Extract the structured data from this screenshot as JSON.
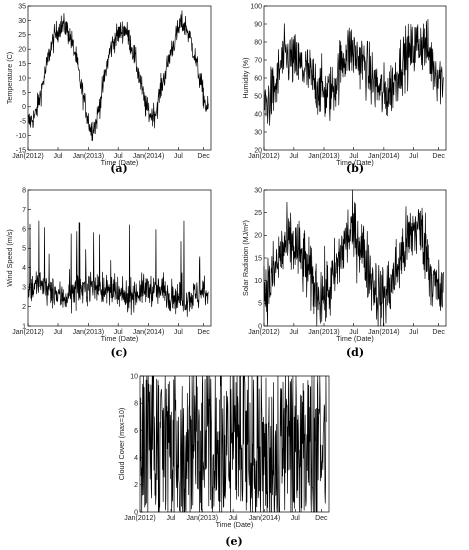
{
  "chart_data": [
    {
      "type": "line",
      "panel": "(a)",
      "xlabel": "Time (Date)",
      "ylabel": "Temperature (C)",
      "ylim": [
        -15,
        35
      ],
      "yticks": [
        -15,
        -10,
        -5,
        0,
        5,
        10,
        15,
        20,
        25,
        30,
        35
      ],
      "xlim": [
        "2012-01-01",
        "2015-01-15"
      ],
      "xticks": [
        "Jan(2012)",
        "Jul",
        "Jan(2013)",
        "Jul",
        "Jan(2014)",
        "Jul",
        "Dec"
      ],
      "x": [
        "2012-01",
        "2012-02",
        "2012-03",
        "2012-04",
        "2012-05",
        "2012-06",
        "2012-07",
        "2012-08",
        "2012-09",
        "2012-10",
        "2012-11",
        "2012-12",
        "2013-01",
        "2013-02",
        "2013-03",
        "2013-04",
        "2013-05",
        "2013-06",
        "2013-07",
        "2013-08",
        "2013-09",
        "2013-10",
        "2013-11",
        "2013-12",
        "2014-01",
        "2014-02",
        "2014-03",
        "2014-04",
        "2014-05",
        "2014-06",
        "2014-07",
        "2014-08",
        "2014-09",
        "2014-10",
        "2014-11",
        "2014-12",
        "2015-01"
      ],
      "series": [
        {
          "values": [
            -5,
            -3,
            4,
            12,
            20,
            25,
            28,
            28,
            24,
            18,
            8,
            0,
            -8,
            -6,
            2,
            12,
            20,
            24,
            26,
            27,
            22,
            16,
            8,
            0,
            -3,
            -2,
            6,
            12,
            19,
            24,
            29,
            28,
            23,
            16,
            8,
            0,
            -2
          ]
        }
      ]
    },
    {
      "type": "line",
      "panel": "(b)",
      "xlabel": "Time (Date)",
      "ylabel": "Humidity (%)",
      "ylim": [
        20,
        100
      ],
      "yticks": [
        20,
        30,
        40,
        50,
        60,
        70,
        80,
        90,
        100
      ],
      "xlim": [
        "2012-01-01",
        "2015-01-15"
      ],
      "xticks": [
        "Jan(2012)",
        "Jul",
        "Jan(2013)",
        "Jul",
        "Jan(2014)",
        "Jul",
        "Dec"
      ],
      "x": [
        "2012-01",
        "2012-02",
        "2012-03",
        "2012-04",
        "2012-05",
        "2012-06",
        "2012-07",
        "2012-08",
        "2012-09",
        "2012-10",
        "2012-11",
        "2012-12",
        "2013-01",
        "2013-02",
        "2013-03",
        "2013-04",
        "2013-05",
        "2013-06",
        "2013-07",
        "2013-08",
        "2013-09",
        "2013-10",
        "2013-11",
        "2013-12",
        "2014-01",
        "2014-02",
        "2014-03",
        "2014-04",
        "2014-05",
        "2014-06",
        "2014-07",
        "2014-08",
        "2014-09",
        "2014-10",
        "2014-11",
        "2014-12",
        "2015-01"
      ],
      "series": [
        {
          "values": [
            45,
            50,
            55,
            68,
            72,
            70,
            68,
            66,
            64,
            60,
            56,
            54,
            50,
            52,
            58,
            68,
            74,
            76,
            72,
            70,
            66,
            60,
            56,
            52,
            50,
            55,
            60,
            68,
            72,
            74,
            78,
            80,
            78,
            70,
            64,
            60,
            58
          ]
        }
      ]
    },
    {
      "type": "line",
      "panel": "(c)",
      "xlabel": "Time (Date)",
      "ylabel": "Wind Speed (m/s)",
      "ylim": [
        1,
        8
      ],
      "yticks": [
        1,
        2,
        3,
        4,
        5,
        6,
        7,
        8
      ],
      "xlim": [
        "2012-01-01",
        "2015-01-15"
      ],
      "xticks": [
        "Jan(2012)",
        "Jul",
        "Jan(2013)",
        "Jul",
        "Jan(2014)",
        "Jul",
        "Dec"
      ],
      "x": [
        "2012-01",
        "2012-02",
        "2012-03",
        "2012-04",
        "2012-05",
        "2012-06",
        "2012-07",
        "2012-08",
        "2012-09",
        "2012-10",
        "2012-11",
        "2012-12",
        "2013-01",
        "2013-02",
        "2013-03",
        "2013-04",
        "2013-05",
        "2013-06",
        "2013-07",
        "2013-08",
        "2013-09",
        "2013-10",
        "2013-11",
        "2013-12",
        "2014-01",
        "2014-02",
        "2014-03",
        "2014-04",
        "2014-05",
        "2014-06",
        "2014-07",
        "2014-08",
        "2014-09",
        "2014-10",
        "2014-11",
        "2014-12",
        "2015-01"
      ],
      "series": [
        {
          "values": [
            2.9,
            3.1,
            3.2,
            3.0,
            2.8,
            2.6,
            2.5,
            2.5,
            2.6,
            2.8,
            2.9,
            3.0,
            3.1,
            3.0,
            3.0,
            2.8,
            2.7,
            2.6,
            2.5,
            2.5,
            2.6,
            2.7,
            2.8,
            2.9,
            2.9,
            2.8,
            2.8,
            2.7,
            2.6,
            2.5,
            2.4,
            2.4,
            2.5,
            2.6,
            2.6,
            2.7,
            2.8
          ]
        }
      ]
    },
    {
      "type": "line",
      "panel": "(d)",
      "xlabel": "Time (Date)",
      "ylabel": "Solar Radiation (MJ/m²)",
      "ylim": [
        0,
        30
      ],
      "yticks": [
        0,
        5,
        10,
        15,
        20,
        25,
        30
      ],
      "xlim": [
        "2012-01-01",
        "2015-01-15"
      ],
      "xticks": [
        "Jan(2012)",
        "Jul",
        "Jan(2013)",
        "Jul",
        "Jan(2014)",
        "Jul",
        "Dec"
      ],
      "x": [
        "2012-01",
        "2012-02",
        "2012-03",
        "2012-04",
        "2012-05",
        "2012-06",
        "2012-07",
        "2012-08",
        "2012-09",
        "2012-10",
        "2012-11",
        "2012-12",
        "2013-01",
        "2013-02",
        "2013-03",
        "2013-04",
        "2013-05",
        "2013-06",
        "2013-07",
        "2013-08",
        "2013-09",
        "2013-10",
        "2013-11",
        "2013-12",
        "2014-01",
        "2014-02",
        "2014-03",
        "2014-04",
        "2014-05",
        "2014-06",
        "2014-07",
        "2014-08",
        "2014-09",
        "2014-10",
        "2014-11",
        "2014-12",
        "2015-01"
      ],
      "series": [
        {
          "values": [
            8,
            10,
            13,
            16,
            18,
            18,
            17,
            15,
            13,
            10,
            8,
            7,
            7,
            9,
            12,
            16,
            19,
            21,
            20,
            18,
            14,
            11,
            8,
            6,
            7,
            9,
            12,
            15,
            18,
            20,
            22,
            21,
            17,
            12,
            8,
            7,
            6
          ]
        }
      ]
    },
    {
      "type": "line",
      "panel": "(e)",
      "xlabel": "Time (Date)",
      "ylabel": "Cloud Cover (max=10)",
      "ylim": [
        0,
        10
      ],
      "yticks": [
        0,
        2,
        4,
        6,
        8,
        10
      ],
      "xlim": [
        "2012-01-01",
        "2015-01-15"
      ],
      "xticks": [
        "Jan(2012)",
        "Jul",
        "Jan(2013)",
        "Jul",
        "Jan(2014)",
        "Jul",
        "Dec"
      ],
      "x": [
        "2012-01",
        "2012-02",
        "2012-03",
        "2012-04",
        "2012-05",
        "2012-06",
        "2012-07",
        "2012-08",
        "2012-09",
        "2012-10",
        "2012-11",
        "2012-12",
        "2013-01",
        "2013-02",
        "2013-03",
        "2013-04",
        "2013-05",
        "2013-06",
        "2013-07",
        "2013-08",
        "2013-09",
        "2013-10",
        "2013-11",
        "2013-12",
        "2014-01",
        "2014-02",
        "2014-03",
        "2014-04",
        "2014-05",
        "2014-06",
        "2014-07",
        "2014-08",
        "2014-09",
        "2014-10",
        "2014-11",
        "2014-12",
        "2015-01"
      ],
      "series": [
        {
          "values": [
            5,
            5,
            5.5,
            5,
            5,
            4.5,
            4.5,
            4.5,
            5,
            5,
            5.5,
            5,
            5,
            5,
            5,
            5.5,
            5.5,
            5,
            5,
            5,
            4.5,
            4.5,
            5,
            5,
            5,
            5,
            5,
            5.5,
            5,
            5,
            4.5,
            4.5,
            4.5,
            5,
            5,
            5,
            5
          ]
        }
      ]
    }
  ]
}
